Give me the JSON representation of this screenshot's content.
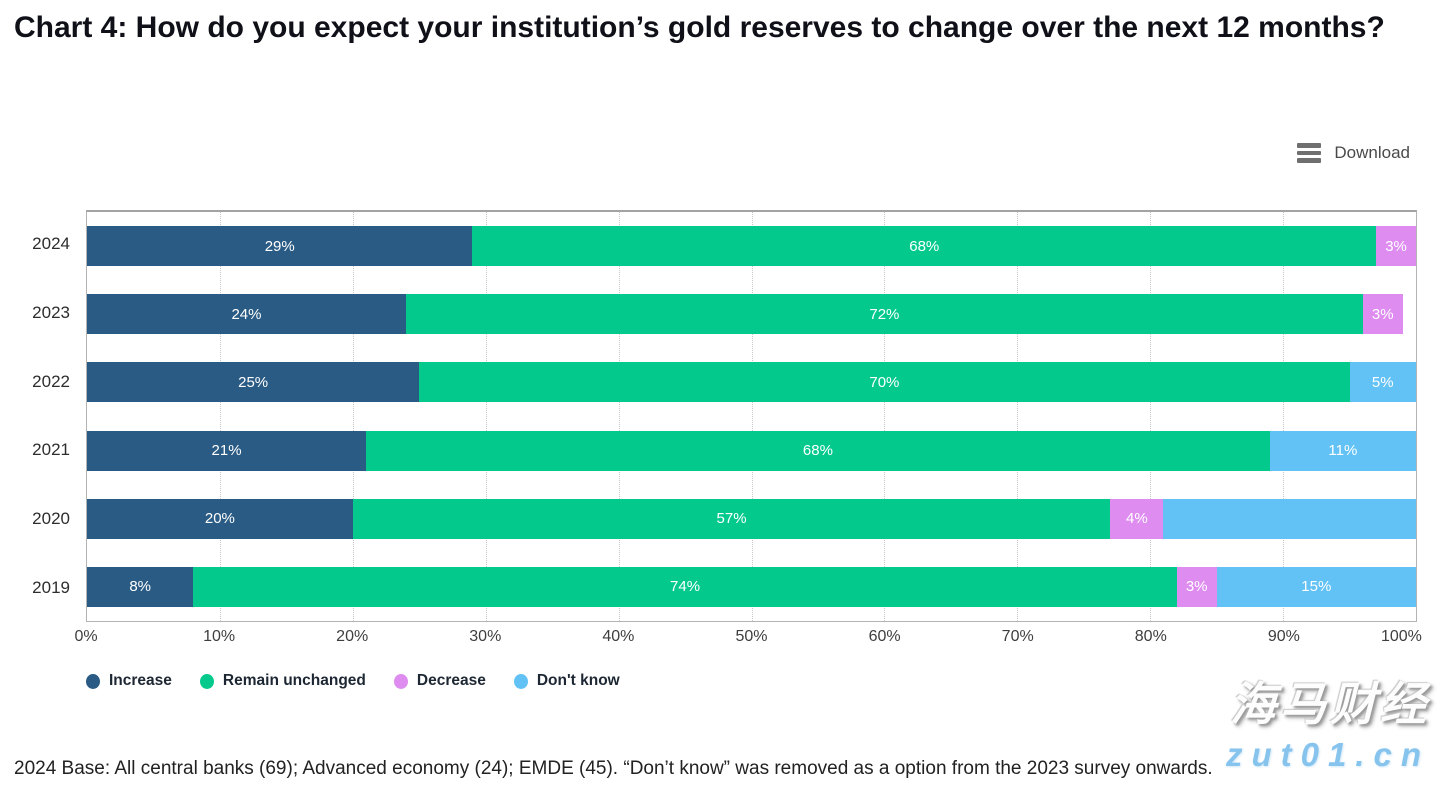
{
  "page": {
    "title": "Chart 4: How do you expect your institution’s gold reserves to change over the next 12 months?"
  },
  "toolbar": {
    "download_label": "Download"
  },
  "chart_data": {
    "type": "bar",
    "orientation": "horizontal",
    "stacked": true,
    "title": "Chart 4: How do you expect your institution’s gold reserves to change over the next 12 months?",
    "categories": [
      "2024",
      "2023",
      "2022",
      "2021",
      "2020",
      "2019"
    ],
    "legend": [
      {
        "key": "increase",
        "label": "Increase",
        "color": "#2a5b84"
      },
      {
        "key": "remain",
        "label": "Remain unchanged",
        "color": "#04c98d"
      },
      {
        "key": "decrease",
        "label": "Decrease",
        "color": "#de8cf0"
      },
      {
        "key": "dontknow",
        "label": "Don't know",
        "color": "#62c2f5"
      }
    ],
    "rows": [
      {
        "year": "2024",
        "segments": [
          {
            "key": "increase",
            "value": 29,
            "label": "29%"
          },
          {
            "key": "remain",
            "value": 68,
            "label": "68%"
          },
          {
            "key": "decrease",
            "value": 3,
            "label": "3%"
          }
        ]
      },
      {
        "year": "2023",
        "segments": [
          {
            "key": "increase",
            "value": 24,
            "label": "24%"
          },
          {
            "key": "remain",
            "value": 72,
            "label": "72%"
          },
          {
            "key": "decrease",
            "value": 3,
            "label": "3%"
          }
        ]
      },
      {
        "year": "2022",
        "segments": [
          {
            "key": "increase",
            "value": 25,
            "label": "25%"
          },
          {
            "key": "remain",
            "value": 70,
            "label": "70%"
          },
          {
            "key": "dontknow",
            "value": 5,
            "label": "5%"
          }
        ]
      },
      {
        "year": "2021",
        "segments": [
          {
            "key": "increase",
            "value": 21,
            "label": "21%"
          },
          {
            "key": "remain",
            "value": 68,
            "label": "68%"
          },
          {
            "key": "dontknow",
            "value": 11,
            "label": "11%"
          }
        ]
      },
      {
        "year": "2020",
        "segments": [
          {
            "key": "increase",
            "value": 20,
            "label": "20%"
          },
          {
            "key": "remain",
            "value": 57,
            "label": "57%"
          },
          {
            "key": "decrease",
            "value": 4,
            "label": "4%"
          },
          {
            "key": "dontknow",
            "value": 19,
            "label": ""
          }
        ]
      },
      {
        "year": "2019",
        "segments": [
          {
            "key": "increase",
            "value": 8,
            "label": "8%"
          },
          {
            "key": "remain",
            "value": 74,
            "label": "74%"
          },
          {
            "key": "decrease",
            "value": 3,
            "label": "3%"
          },
          {
            "key": "dontknow",
            "value": 15,
            "label": "15%"
          }
        ]
      }
    ],
    "x_axis": {
      "min": 0,
      "max": 100,
      "ticks": [
        "0%",
        "10%",
        "20%",
        "30%",
        "40%",
        "50%",
        "60%",
        "70%",
        "80%",
        "90%",
        "100%"
      ]
    },
    "grid": "vertical-dotted",
    "legend_position": "bottom-left"
  },
  "footer": {
    "note": "2024 Base: All central banks (69); Advanced economy (24); EMDE (45). “Don’t know” was removed as a option from the 2023 survey onwards."
  },
  "watermark": {
    "line1": "海马财经",
    "line2": "zut01.cn"
  }
}
